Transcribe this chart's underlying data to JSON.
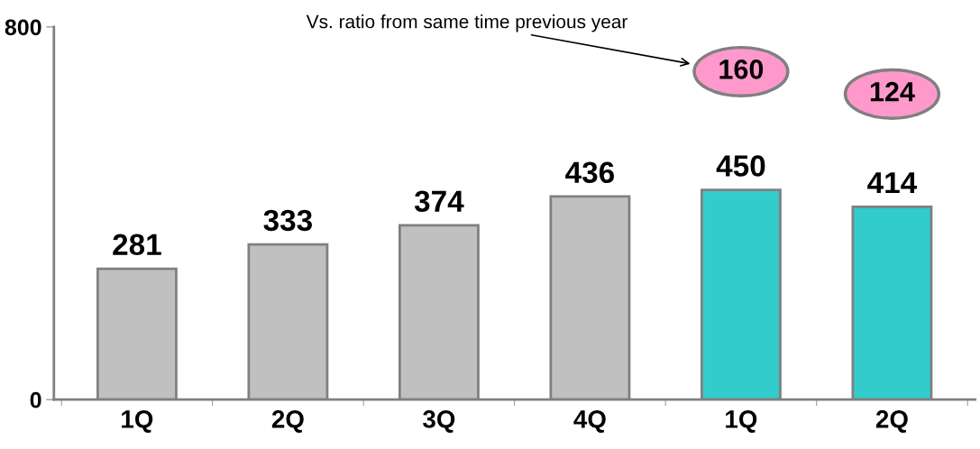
{
  "chart_data": {
    "type": "bar",
    "categories": [
      "1Q",
      "2Q",
      "3Q",
      "4Q",
      "1Q",
      "2Q"
    ],
    "values": [
      281,
      333,
      374,
      436,
      450,
      414
    ],
    "colors": [
      "#c0c0c0",
      "#c0c0c0",
      "#c0c0c0",
      "#c0c0c0",
      "#33cccc",
      "#33cccc"
    ],
    "data_labels": true,
    "ylim": [
      0,
      800
    ],
    "yticks": [
      0,
      800
    ],
    "grid": false,
    "legend": false,
    "annotations": [
      "Vs. ratio from same time previous year",
      "160",
      "124"
    ]
  }
}
